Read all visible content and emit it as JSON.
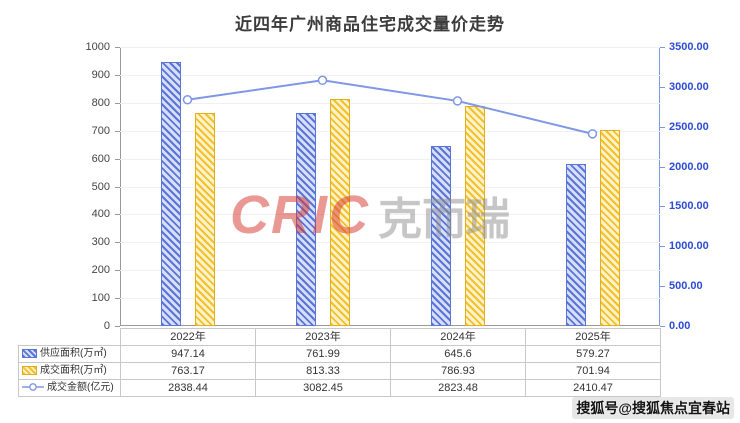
{
  "title": "近四年广州商品住宅成交量价走势",
  "watermark": {
    "logo_latin": "CRIC",
    "logo_cjk": "克而瑞",
    "logo_latin_color": "#d7342b",
    "logo_cjk_color": "#8f8f8f"
  },
  "footer_watermark": "搜狐号@搜狐焦点宜春站",
  "chart_data": {
    "type": "bar+line",
    "title": "近四年广州商品住宅成交量价走势",
    "categories": [
      "2022年",
      "2023年",
      "2024年",
      "2025年"
    ],
    "series": [
      {
        "name": "供应面积(万㎡)",
        "type": "bar",
        "axis": "left",
        "color": "#5b74d8",
        "fill": "#d6def8",
        "border": "#5b74d8",
        "values": [
          947.14,
          761.99,
          645.6,
          579.27
        ]
      },
      {
        "name": "成交面积(万㎡)",
        "type": "bar",
        "axis": "left",
        "color": "#f3c02e",
        "fill": "#fdf2c8",
        "border": "#e3af1e",
        "values": [
          763.17,
          813.33,
          786.93,
          701.94
        ]
      },
      {
        "name": "成交金额(亿元)",
        "type": "line",
        "axis": "right",
        "color": "#7e97e6",
        "marker_fill": "#ffffff",
        "values": [
          2838.44,
          3082.45,
          2823.48,
          2410.47
        ]
      }
    ],
    "left_axis": {
      "min": 0,
      "max": 1000,
      "step": 100,
      "label_color": "#444444"
    },
    "right_axis": {
      "min": 0,
      "max": 3500,
      "step": 500,
      "decimals": 2,
      "label_color": "#2d4bd6"
    },
    "grid": true,
    "legend_position": "table-left"
  }
}
